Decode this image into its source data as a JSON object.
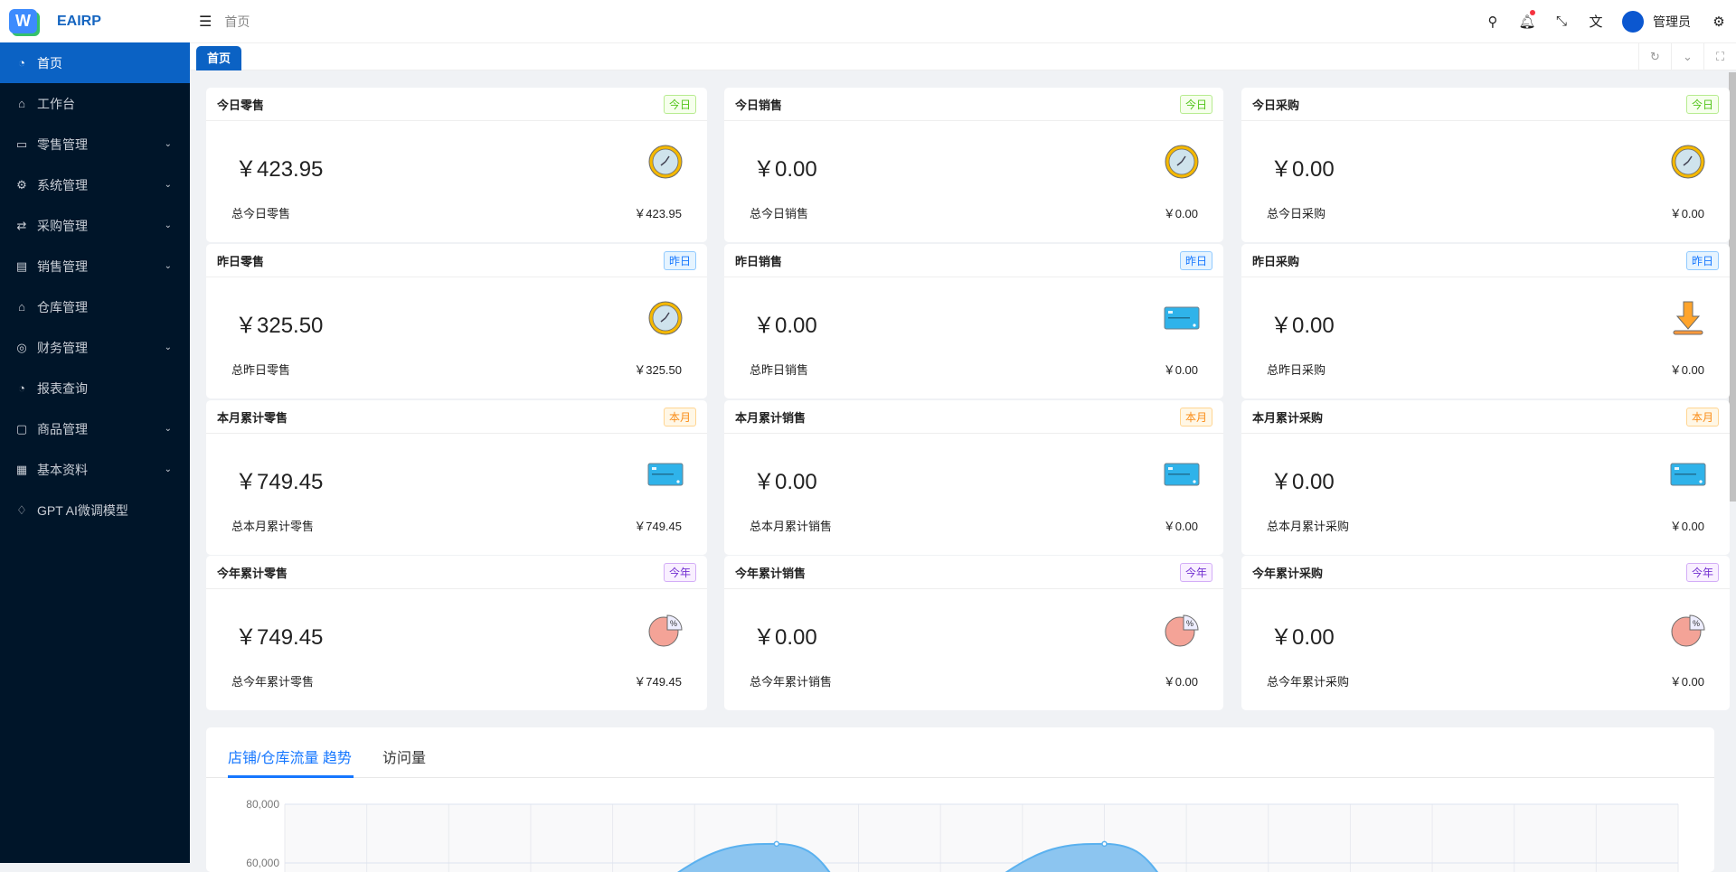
{
  "app": {
    "logo_letter": "W",
    "name": "EAIRP"
  },
  "sidebar": {
    "items": [
      {
        "label": "首页",
        "icon": "dashboard-icon",
        "glyph": "◔",
        "active": true,
        "expandable": false
      },
      {
        "label": "工作台",
        "icon": "home-icon",
        "glyph": "⌂",
        "expandable": false
      },
      {
        "label": "零售管理",
        "icon": "folder-icon",
        "glyph": "▭",
        "expandable": true
      },
      {
        "label": "系统管理",
        "icon": "gear-icon",
        "glyph": "⚙",
        "expandable": true
      },
      {
        "label": "采购管理",
        "icon": "swap-icon",
        "glyph": "⇄",
        "expandable": true
      },
      {
        "label": "销售管理",
        "icon": "calculator-icon",
        "glyph": "▤",
        "expandable": true
      },
      {
        "label": "仓库管理",
        "icon": "bank-icon",
        "glyph": "⌂",
        "expandable": false
      },
      {
        "label": "财务管理",
        "icon": "money-icon",
        "glyph": "◎",
        "expandable": true
      },
      {
        "label": "报表查询",
        "icon": "pie-chart-icon",
        "glyph": "◔",
        "expandable": false
      },
      {
        "label": "商品管理",
        "icon": "shopping-icon",
        "glyph": "▢",
        "expandable": true
      },
      {
        "label": "基本资料",
        "icon": "appstore-icon",
        "glyph": "▦",
        "expandable": true
      },
      {
        "label": "GPT AI微调模型",
        "icon": "robot-icon",
        "glyph": "♢",
        "expandable": false
      }
    ]
  },
  "header": {
    "breadcrumb": "首页",
    "user": "管理员",
    "notification_dot": true
  },
  "tabs": [
    {
      "label": "首页",
      "active": true
    }
  ],
  "badges": {
    "today": {
      "label": "今日",
      "color": "#52c41a",
      "bg": "#f6ffed",
      "border": "#b7eb8f"
    },
    "yesterday": {
      "label": "昨日",
      "color": "#1677ff",
      "bg": "#e6f4ff",
      "border": "#91caff"
    },
    "month": {
      "label": "本月",
      "color": "#fa8c16",
      "bg": "#fff7e6",
      "border": "#ffd591"
    },
    "year": {
      "label": "今年",
      "color": "#722ed1",
      "bg": "#f9f0ff",
      "border": "#d3adf7"
    }
  },
  "cards": [
    [
      {
        "title": "今日零售",
        "badge": "today",
        "amount": "￥423.95",
        "sub_label": "总今日零售",
        "sub_value": "￥423.95",
        "icon": "clock"
      },
      {
        "title": "今日销售",
        "badge": "today",
        "amount": "￥0.00",
        "sub_label": "总今日销售",
        "sub_value": "￥0.00",
        "icon": "clock"
      },
      {
        "title": "今日采购",
        "badge": "today",
        "amount": "￥0.00",
        "sub_label": "总今日采购",
        "sub_value": "￥0.00",
        "icon": "clock"
      }
    ],
    [
      {
        "title": "昨日零售",
        "badge": "yesterday",
        "amount": "￥325.50",
        "sub_label": "总昨日零售",
        "sub_value": "￥325.50",
        "icon": "clock"
      },
      {
        "title": "昨日销售",
        "badge": "yesterday",
        "amount": "￥0.00",
        "sub_label": "总昨日销售",
        "sub_value": "￥0.00",
        "icon": "card"
      },
      {
        "title": "昨日采购",
        "badge": "yesterday",
        "amount": "￥0.00",
        "sub_label": "总昨日采购",
        "sub_value": "￥0.00",
        "icon": "download"
      }
    ],
    [
      {
        "title": "本月累计零售",
        "badge": "month",
        "amount": "￥749.45",
        "sub_label": "总本月累计零售",
        "sub_value": "￥749.45",
        "icon": "card"
      },
      {
        "title": "本月累计销售",
        "badge": "month",
        "amount": "￥0.00",
        "sub_label": "总本月累计销售",
        "sub_value": "￥0.00",
        "icon": "card"
      },
      {
        "title": "本月累计采购",
        "badge": "month",
        "amount": "￥0.00",
        "sub_label": "总本月累计采购",
        "sub_value": "￥0.00",
        "icon": "card"
      }
    ],
    [
      {
        "title": "今年累计零售",
        "badge": "year",
        "amount": "￥749.45",
        "sub_label": "总今年累计零售",
        "sub_value": "￥749.45",
        "icon": "pie"
      },
      {
        "title": "今年累计销售",
        "badge": "year",
        "amount": "￥0.00",
        "sub_label": "总今年累计销售",
        "sub_value": "￥0.00",
        "icon": "pie"
      },
      {
        "title": "今年累计采购",
        "badge": "year",
        "amount": "￥0.00",
        "sub_label": "总今年累计采购",
        "sub_value": "￥0.00",
        "icon": "pie"
      }
    ]
  ],
  "chart_tabs": [
    {
      "label": "店铺/仓库流量 趋势",
      "active": true
    },
    {
      "label": "访问量",
      "active": false
    }
  ],
  "chart_data": {
    "type": "area",
    "ytick_labels": [
      "80,000",
      "60,000"
    ],
    "yticks": [
      80000,
      60000
    ],
    "ylim_visible": [
      60000,
      80000
    ],
    "grid": true,
    "color": "#5ab1ef",
    "values": [
      null,
      null,
      null,
      null,
      null,
      null,
      66500,
      null,
      null,
      null,
      66500,
      null,
      null,
      null,
      null,
      null,
      null,
      null
    ]
  }
}
